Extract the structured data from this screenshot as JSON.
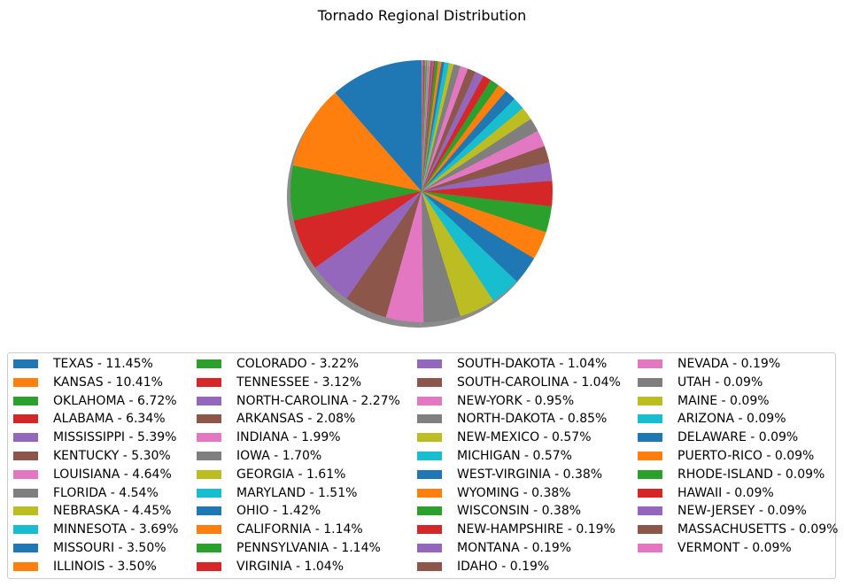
{
  "chart_data": {
    "type": "pie",
    "title": "Tornado Regional Distribution",
    "shadow": true,
    "legend": "bottom",
    "legend_columns": 4,
    "colors": [
      "#1f77b4",
      "#ff7f0e",
      "#2ca02c",
      "#d62728",
      "#9467bd",
      "#8c564b",
      "#e377c2",
      "#7f7f7f",
      "#bcbd22",
      "#17becf"
    ],
    "slices": [
      {
        "label": "TEXAS - 11.45%",
        "value": 11.45
      },
      {
        "label": "KANSAS - 10.41%",
        "value": 10.41
      },
      {
        "label": "OKLAHOMA - 6.72%",
        "value": 6.72
      },
      {
        "label": "ALABAMA - 6.34%",
        "value": 6.34
      },
      {
        "label": "MISSISSIPPI - 5.39%",
        "value": 5.39
      },
      {
        "label": "KENTUCKY - 5.30%",
        "value": 5.3
      },
      {
        "label": "LOUISIANA - 4.64%",
        "value": 4.64
      },
      {
        "label": "FLORIDA - 4.54%",
        "value": 4.54
      },
      {
        "label": "NEBRASKA - 4.45%",
        "value": 4.45
      },
      {
        "label": "MINNESOTA - 3.69%",
        "value": 3.69
      },
      {
        "label": "MISSOURI - 3.50%",
        "value": 3.5
      },
      {
        "label": "ILLINOIS - 3.50%",
        "value": 3.5
      },
      {
        "label": "COLORADO - 3.22%",
        "value": 3.22
      },
      {
        "label": "TENNESSEE - 3.12%",
        "value": 3.12
      },
      {
        "label": "NORTH-CAROLINA - 2.27%",
        "value": 2.27
      },
      {
        "label": "ARKANSAS - 2.08%",
        "value": 2.08
      },
      {
        "label": "INDIANA - 1.99%",
        "value": 1.99
      },
      {
        "label": "IOWA - 1.70%",
        "value": 1.7
      },
      {
        "label": "GEORGIA - 1.61%",
        "value": 1.61
      },
      {
        "label": "MARYLAND - 1.51%",
        "value": 1.51
      },
      {
        "label": "OHIO - 1.42%",
        "value": 1.42
      },
      {
        "label": "CALIFORNIA - 1.14%",
        "value": 1.14
      },
      {
        "label": "PENNSYLVANIA - 1.14%",
        "value": 1.14
      },
      {
        "label": "VIRGINIA - 1.04%",
        "value": 1.04
      },
      {
        "label": "SOUTH-DAKOTA - 1.04%",
        "value": 1.04
      },
      {
        "label": "SOUTH-CAROLINA - 1.04%",
        "value": 1.04
      },
      {
        "label": "NEW-YORK - 0.95%",
        "value": 0.95
      },
      {
        "label": "NORTH-DAKOTA - 0.85%",
        "value": 0.85
      },
      {
        "label": "NEW-MEXICO - 0.57%",
        "value": 0.57
      },
      {
        "label": "MICHIGAN - 0.57%",
        "value": 0.57
      },
      {
        "label": "WEST-VIRGINIA - 0.38%",
        "value": 0.38
      },
      {
        "label": "WYOMING - 0.38%",
        "value": 0.38
      },
      {
        "label": "WISCONSIN - 0.38%",
        "value": 0.38
      },
      {
        "label": "NEW-HAMPSHIRE - 0.19%",
        "value": 0.19
      },
      {
        "label": "MONTANA - 0.19%",
        "value": 0.19
      },
      {
        "label": "IDAHO - 0.19%",
        "value": 0.19
      },
      {
        "label": "NEVADA - 0.19%",
        "value": 0.19
      },
      {
        "label": "UTAH - 0.09%",
        "value": 0.09
      },
      {
        "label": "MAINE - 0.09%",
        "value": 0.09
      },
      {
        "label": "ARIZONA - 0.09%",
        "value": 0.09
      },
      {
        "label": "DELAWARE - 0.09%",
        "value": 0.09
      },
      {
        "label": "PUERTO-RICO - 0.09%",
        "value": 0.09
      },
      {
        "label": "RHODE-ISLAND - 0.09%",
        "value": 0.09
      },
      {
        "label": "HAWAII - 0.09%",
        "value": 0.09
      },
      {
        "label": "NEW-JERSEY - 0.09%",
        "value": 0.09
      },
      {
        "label": "MASSACHUSETTS - 0.09%",
        "value": 0.09
      },
      {
        "label": "VERMONT - 0.09%",
        "value": 0.09
      }
    ]
  }
}
